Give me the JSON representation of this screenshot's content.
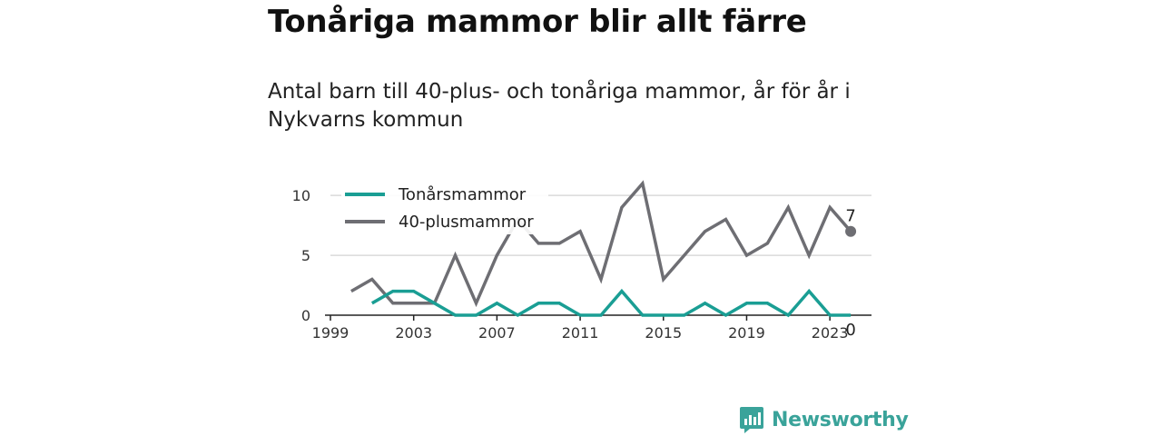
{
  "title": "Tonåriga mammor blir allt färre",
  "subtitle": "Antal barn till 40-plus- och tonåriga mammor, år för år i Nykvarns kommun",
  "brand": {
    "name": "Newsworthy",
    "logo_icon": "bar-chart-logo-icon",
    "color": "#3aa39a"
  },
  "colors": {
    "teen": "#1a9e94",
    "forty": "#6e6e73",
    "grid": "#d9d9d9",
    "axis": "#222222"
  },
  "chart_data": {
    "type": "line",
    "x": [
      2000,
      2001,
      2002,
      2003,
      2004,
      2005,
      2006,
      2007,
      2008,
      2009,
      2010,
      2011,
      2012,
      2013,
      2014,
      2015,
      2016,
      2017,
      2018,
      2019,
      2020,
      2021,
      2022,
      2023,
      2024
    ],
    "series": [
      {
        "name": "Tonårsmammor",
        "color": "#1a9e94",
        "values": [
          null,
          1,
          2,
          2,
          1,
          0,
          0,
          1,
          0,
          1,
          1,
          0,
          0,
          2,
          0,
          0,
          0,
          1,
          0,
          1,
          1,
          0,
          2,
          0,
          0
        ]
      },
      {
        "name": "40-plusmammor",
        "color": "#6e6e73",
        "values": [
          2,
          3,
          1,
          1,
          1,
          5,
          1,
          5,
          8,
          6,
          6,
          7,
          3,
          9,
          11,
          3,
          5,
          7,
          8,
          5,
          6,
          9,
          5,
          9,
          7
        ]
      }
    ],
    "end_labels": {
      "forty": "7",
      "teen": "0"
    },
    "xticks": [
      "1999",
      "2003",
      "2007",
      "2011",
      "2015",
      "2019",
      "2023"
    ],
    "yticks": [
      "0",
      "5",
      "10"
    ],
    "xlim": [
      1999,
      2025
    ],
    "ylim": [
      0,
      11
    ],
    "grid": "horizontal",
    "legend_position": "top-left"
  }
}
